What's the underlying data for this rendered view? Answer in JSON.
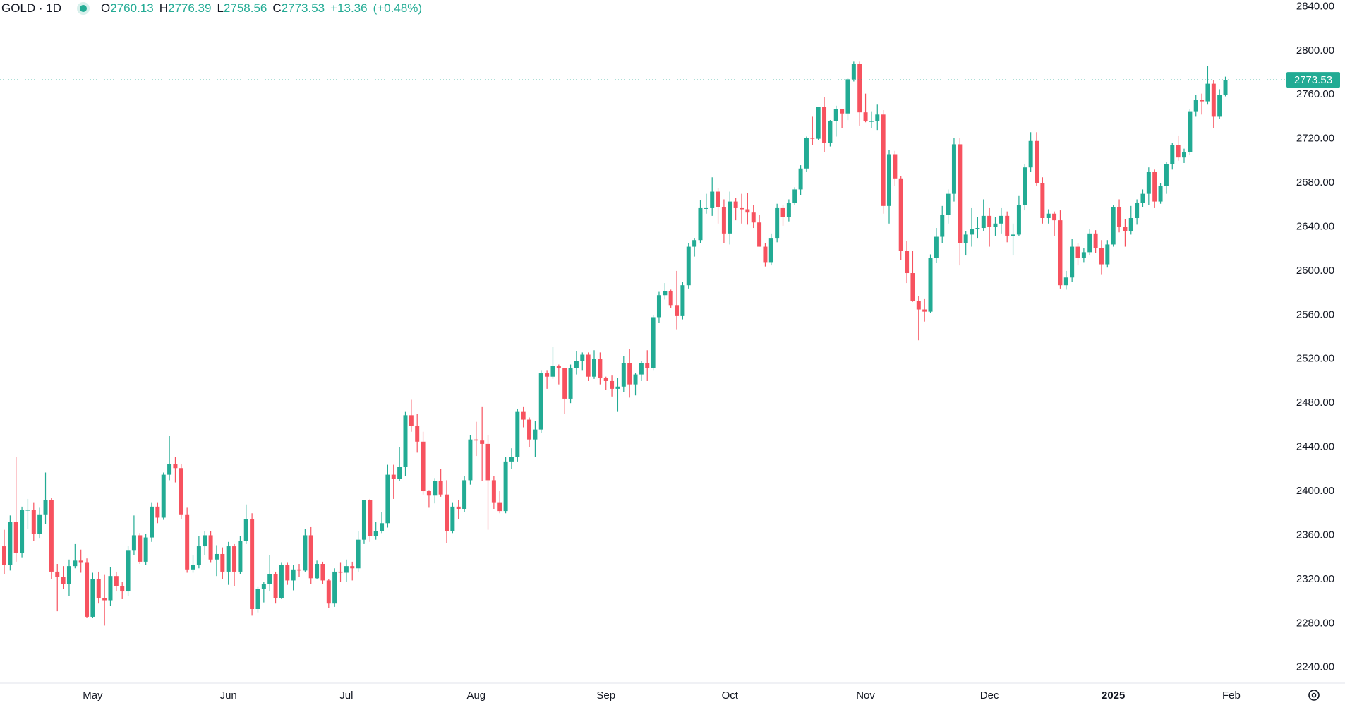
{
  "header": {
    "symbol": "GOLD · 1D",
    "open_label": "O",
    "open": 2760.13,
    "high_label": "H",
    "high": 2776.39,
    "low_label": "L",
    "low": 2758.56,
    "close_label": "C",
    "close": 2773.53,
    "change": "+13.36",
    "change_pct": "(+0.48%)"
  },
  "chart_data": {
    "type": "candlestick",
    "up_color": "#22ab94",
    "down_color": "#f7525f",
    "grid": false,
    "ylim": [
      2227,
      2846
    ],
    "yticks": [
      {
        "value": 2240,
        "label": "2240.00"
      },
      {
        "value": 2280,
        "label": "2280.00"
      },
      {
        "value": 2320,
        "label": "2320.00"
      },
      {
        "value": 2360,
        "label": "2360.00"
      },
      {
        "value": 2400,
        "label": "2400.00"
      },
      {
        "value": 2440,
        "label": "2440.00"
      },
      {
        "value": 2480,
        "label": "2480.00"
      },
      {
        "value": 2520,
        "label": "2520.00"
      },
      {
        "value": 2560,
        "label": "2560.00"
      },
      {
        "value": 2600,
        "label": "2600.00"
      },
      {
        "value": 2640,
        "label": "2640.00"
      },
      {
        "value": 2680,
        "label": "2680.00"
      },
      {
        "value": 2720,
        "label": "2720.00"
      },
      {
        "value": 2760,
        "label": "2760.00"
      },
      {
        "value": 2800,
        "label": "2800.00"
      },
      {
        "value": 2840,
        "label": "2840.00"
      }
    ],
    "xticks": [
      {
        "value": 15,
        "label": "May"
      },
      {
        "value": 38,
        "label": "Jun"
      },
      {
        "value": 58,
        "label": "Jul"
      },
      {
        "value": 80,
        "label": "Aug"
      },
      {
        "value": 102,
        "label": "Sep"
      },
      {
        "value": 123,
        "label": "Oct"
      },
      {
        "value": 146,
        "label": "Nov"
      },
      {
        "value": 167,
        "label": "Dec"
      },
      {
        "value": 188,
        "label": "2025"
      },
      {
        "value": 208,
        "label": "Feb"
      }
    ],
    "open": [
      2350,
      2333,
      2372,
      2344,
      2383,
      2383,
      2361,
      2379,
      2392,
      2327,
      2322,
      2316,
      2332,
      2337,
      2335,
      2286,
      2320,
      2303,
      2301,
      2323,
      2314,
      2309,
      2346,
      2360,
      2336,
      2358,
      2386,
      2376,
      2415,
      2425,
      2421,
      2379,
      2329,
      2333,
      2350,
      2360,
      2338,
      2343,
      2327,
      2350,
      2327,
      2355,
      2375,
      2293,
      2311,
      2316,
      2325,
      2303,
      2333,
      2319,
      2329,
      2328,
      2360,
      2321,
      2334,
      2319,
      2298,
      2327,
      2326,
      2332,
      2330,
      2356,
      2392,
      2359,
      2364,
      2371,
      2415,
      2411,
      2422,
      2469,
      2459,
      2445,
      2400,
      2396,
      2409,
      2397,
      2364,
      2386,
      2384,
      2410,
      2447,
      2446,
      2443,
      2410,
      2390,
      2382,
      2427,
      2431,
      2472,
      2465,
      2447,
      2456,
      2507,
      2504,
      2514,
      2512,
      2484,
      2512,
      2518,
      2524,
      2504,
      2520,
      2503,
      2500,
      2493,
      2495,
      2516,
      2497,
      2506,
      2516,
      2512,
      2558,
      2578,
      2582,
      2569,
      2559,
      2587,
      2622,
      2628,
      2657,
      2657,
      2672,
      2658,
      2634,
      2663,
      2657,
      2656,
      2653,
      2644,
      2622,
      2608,
      2630,
      2657,
      2649,
      2662,
      2674,
      2693,
      2721,
      2720,
      2749,
      2716,
      2736,
      2747,
      2743,
      2774,
      2788,
      2744,
      2736,
      2736,
      2742,
      2659,
      2706,
      2684,
      2618,
      2598,
      2573,
      2565,
      2563,
      2612,
      2631,
      2651,
      2670,
      2715,
      2625,
      2633,
      2638,
      2639,
      2650,
      2640,
      2643,
      2650,
      2632,
      2633,
      2660,
      2694,
      2718,
      2680,
      2648,
      2652,
      2646,
      2587,
      2594,
      2622,
      2612,
      2617,
      2634,
      2621,
      2606,
      2624,
      2658,
      2640,
      2636,
      2648,
      2662,
      2670,
      2690,
      2663,
      2677,
      2697,
      2714,
      2703,
      2708,
      2745,
      2755,
      2754,
      2770,
      2740,
      2760.13
    ],
    "high": [
      2365,
      2378,
      2431,
      2386,
      2393,
      2390,
      2385,
      2417,
      2394,
      2334,
      2332,
      2338,
      2352,
      2347,
      2339,
      2326,
      2327,
      2324,
      2331,
      2327,
      2318,
      2350,
      2378,
      2362,
      2361,
      2390,
      2390,
      2417,
      2450,
      2431,
      2425,
      2385,
      2342,
      2359,
      2364,
      2364,
      2351,
      2349,
      2354,
      2352,
      2359,
      2388,
      2380,
      2313,
      2318,
      2342,
      2327,
      2335,
      2335,
      2333,
      2334,
      2366,
      2368,
      2337,
      2336,
      2320,
      2330,
      2335,
      2338,
      2336,
      2364,
      2392,
      2393,
      2372,
      2381,
      2424,
      2424,
      2440,
      2472,
      2483,
      2470,
      2454,
      2401,
      2412,
      2420,
      2410,
      2390,
      2392,
      2414,
      2451,
      2463,
      2477,
      2451,
      2414,
      2400,
      2431,
      2439,
      2475,
      2477,
      2467,
      2464,
      2510,
      2510,
      2531,
      2515,
      2512,
      2515,
      2527,
      2526,
      2526,
      2528,
      2526,
      2504,
      2505,
      2503,
      2523,
      2529,
      2507,
      2518,
      2528,
      2560,
      2581,
      2589,
      2583,
      2600,
      2590,
      2625,
      2630,
      2664,
      2670,
      2685,
      2675,
      2665,
      2672,
      2666,
      2670,
      2671,
      2660,
      2651,
      2625,
      2634,
      2661,
      2660,
      2665,
      2676,
      2696,
      2722,
      2740,
      2749,
      2758,
      2737,
      2750,
      2747,
      2775,
      2790,
      2790,
      2761,
      2745,
      2751,
      2746,
      2710,
      2709,
      2686,
      2627,
      2618,
      2577,
      2575,
      2615,
      2639,
      2659,
      2674,
      2721,
      2721,
      2636,
      2657,
      2649,
      2665,
      2657,
      2649,
      2657,
      2654,
      2643,
      2668,
      2697,
      2726,
      2726,
      2685,
      2656,
      2654,
      2655,
      2600,
      2629,
      2625,
      2621,
      2638,
      2637,
      2628,
      2628,
      2660,
      2665,
      2647,
      2659,
      2665,
      2674,
      2694,
      2692,
      2680,
      2699,
      2716,
      2723,
      2711,
      2747,
      2760,
      2761,
      2786,
      2773,
      2765,
      2776.39
    ],
    "low": [
      2325,
      2328,
      2336,
      2340,
      2366,
      2355,
      2357,
      2370,
      2320,
      2291,
      2311,
      2305,
      2330,
      2326,
      2285,
      2285,
      2298,
      2278,
      2296,
      2309,
      2302,
      2305,
      2342,
      2334,
      2333,
      2354,
      2371,
      2374,
      2410,
      2408,
      2375,
      2326,
      2326,
      2330,
      2342,
      2335,
      2323,
      2320,
      2315,
      2314,
      2325,
      2352,
      2287,
      2290,
      2299,
      2309,
      2298,
      2302,
      2315,
      2310,
      2322,
      2327,
      2316,
      2320,
      2316,
      2294,
      2295,
      2318,
      2318,
      2319,
      2327,
      2352,
      2354,
      2356,
      2362,
      2367,
      2393,
      2409,
      2414,
      2454,
      2435,
      2397,
      2385,
      2389,
      2395,
      2353,
      2362,
      2375,
      2381,
      2406,
      2432,
      2409,
      2365,
      2384,
      2380,
      2380,
      2420,
      2427,
      2458,
      2440,
      2431,
      2453,
      2493,
      2502,
      2497,
      2470,
      2480,
      2506,
      2510,
      2500,
      2502,
      2497,
      2492,
      2486,
      2472,
      2490,
      2485,
      2487,
      2500,
      2500,
      2510,
      2553,
      2574,
      2566,
      2547,
      2556,
      2584,
      2613,
      2625,
      2652,
      2650,
      2643,
      2625,
      2624,
      2646,
      2643,
      2642,
      2639,
      2622,
      2604,
      2605,
      2626,
      2641,
      2645,
      2660,
      2669,
      2690,
      2714,
      2719,
      2708,
      2713,
      2722,
      2730,
      2737,
      2772,
      2732,
      2735,
      2730,
      2728,
      2652,
      2643,
      2677,
      2610,
      2589,
      2572,
      2537,
      2554,
      2562,
      2607,
      2625,
      2643,
      2663,
      2605,
      2614,
      2622,
      2630,
      2636,
      2622,
      2632,
      2634,
      2626,
      2614,
      2632,
      2655,
      2690,
      2677,
      2643,
      2643,
      2632,
      2584,
      2583,
      2590,
      2605,
      2608,
      2614,
      2616,
      2597,
      2603,
      2622,
      2635,
      2622,
      2633,
      2642,
      2658,
      2660,
      2657,
      2661,
      2670,
      2692,
      2700,
      2698,
      2705,
      2740,
      2742,
      2751,
      2730,
      2738,
      2758.56
    ],
    "close": [
      2333,
      2372,
      2344,
      2383,
      2383,
      2361,
      2379,
      2392,
      2327,
      2322,
      2316,
      2332,
      2337,
      2335,
      2286,
      2320,
      2303,
      2301,
      2323,
      2314,
      2309,
      2346,
      2360,
      2336,
      2358,
      2386,
      2376,
      2415,
      2425,
      2421,
      2379,
      2329,
      2333,
      2350,
      2360,
      2338,
      2343,
      2327,
      2350,
      2327,
      2355,
      2375,
      2293,
      2311,
      2316,
      2325,
      2303,
      2333,
      2319,
      2329,
      2328,
      2360,
      2321,
      2334,
      2319,
      2298,
      2327,
      2326,
      2332,
      2330,
      2356,
      2392,
      2359,
      2364,
      2371,
      2415,
      2411,
      2422,
      2469,
      2459,
      2445,
      2400,
      2396,
      2409,
      2397,
      2364,
      2386,
      2384,
      2410,
      2447,
      2446,
      2443,
      2410,
      2390,
      2382,
      2427,
      2431,
      2472,
      2465,
      2447,
      2456,
      2507,
      2504,
      2514,
      2512,
      2484,
      2512,
      2518,
      2524,
      2504,
      2520,
      2503,
      2500,
      2493,
      2495,
      2516,
      2497,
      2506,
      2516,
      2512,
      2558,
      2578,
      2582,
      2569,
      2559,
      2587,
      2622,
      2628,
      2657,
      2657,
      2672,
      2658,
      2634,
      2663,
      2657,
      2656,
      2653,
      2644,
      2622,
      2608,
      2630,
      2657,
      2649,
      2662,
      2674,
      2693,
      2721,
      2720,
      2749,
      2716,
      2736,
      2747,
      2743,
      2774,
      2788,
      2744,
      2736,
      2736,
      2742,
      2659,
      2706,
      2684,
      2618,
      2598,
      2573,
      2565,
      2563,
      2612,
      2631,
      2651,
      2670,
      2715,
      2625,
      2633,
      2638,
      2639,
      2650,
      2640,
      2643,
      2650,
      2632,
      2633,
      2660,
      2694,
      2718,
      2680,
      2648,
      2652,
      2646,
      2587,
      2594,
      2622,
      2612,
      2617,
      2634,
      2621,
      2606,
      2624,
      2658,
      2640,
      2636,
      2648,
      2662,
      2670,
      2690,
      2663,
      2677,
      2697,
      2714,
      2703,
      2708,
      2745,
      2755,
      2754,
      2770,
      2740,
      2760.13,
      2773.53
    ]
  }
}
